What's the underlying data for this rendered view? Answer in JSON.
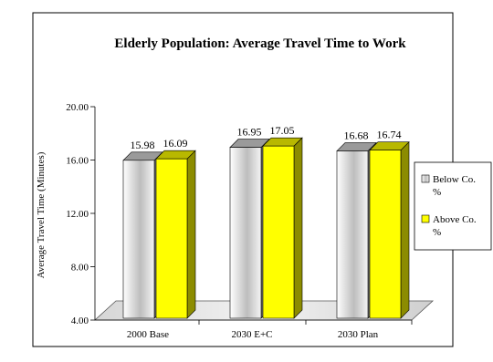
{
  "chart_data": {
    "type": "bar",
    "title": "Elderly Population: Average Travel Time to Work",
    "xlabel": "",
    "ylabel": "Average Travel Time (Minutes)",
    "ylim": [
      4.0,
      20.0
    ],
    "yticks": [
      "4.00",
      "8.00",
      "12.00",
      "16.00",
      "20.00"
    ],
    "ytick_values": [
      4,
      8,
      12,
      16,
      20
    ],
    "categories": [
      "2000 Base",
      "2030 E+C",
      "2030 Plan"
    ],
    "series": [
      {
        "name": "Below Co. %",
        "name_lines": [
          "Below Co.",
          "%"
        ],
        "values": [
          15.98,
          16.95,
          16.68
        ],
        "labels": [
          "15.98",
          "16.95",
          "16.68"
        ],
        "color": "#e6e6e6"
      },
      {
        "name": "Above Co. %",
        "name_lines": [
          "Above Co.",
          "%"
        ],
        "values": [
          16.09,
          17.05,
          16.74
        ],
        "labels": [
          "16.09",
          "17.05",
          "16.74"
        ],
        "color": "#ffff00"
      }
    ],
    "grid": false,
    "legend": "right",
    "style": "3d"
  }
}
